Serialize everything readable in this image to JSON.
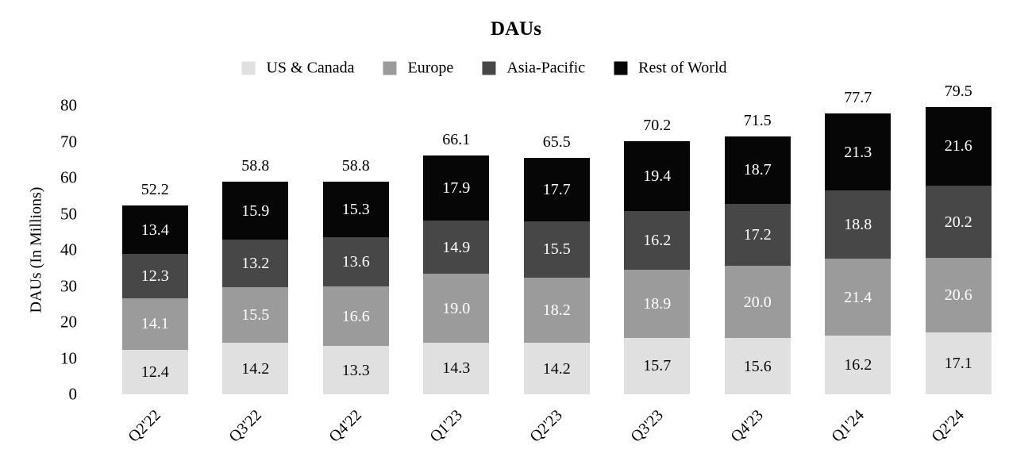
{
  "chart_data": {
    "type": "bar",
    "stacked": true,
    "title": "DAUs",
    "ylabel": "DAUs (In Millions)",
    "ylim": [
      0,
      80
    ],
    "yticks": [
      0,
      10,
      20,
      30,
      40,
      50,
      60,
      70,
      80
    ],
    "grid": false,
    "legend_position": "top-center",
    "categories": [
      "Q2'22",
      "Q3'22",
      "Q4'22",
      "Q1'23",
      "Q2'23",
      "Q3'23",
      "Q4'23",
      "Q1'24",
      "Q2'24"
    ],
    "series": [
      {
        "name": "US & Canada",
        "color": "#e0e0e0",
        "label_color": "#0a0a0a",
        "values": [
          12.4,
          14.2,
          13.3,
          14.3,
          14.2,
          15.7,
          15.6,
          16.2,
          17.1
        ]
      },
      {
        "name": "Europe",
        "color": "#9b9b9b",
        "label_color": "#ffffff",
        "values": [
          14.1,
          15.5,
          16.6,
          19.0,
          18.2,
          18.9,
          20.0,
          21.4,
          20.6
        ]
      },
      {
        "name": "Asia-Pacific",
        "color": "#474747",
        "label_color": "#ffffff",
        "values": [
          12.3,
          13.2,
          13.6,
          14.9,
          15.5,
          16.2,
          17.2,
          18.8,
          20.2
        ]
      },
      {
        "name": "Rest of World",
        "color": "#060606",
        "label_color": "#ffffff",
        "values": [
          13.4,
          15.9,
          15.3,
          17.9,
          17.7,
          19.4,
          18.7,
          21.3,
          21.6
        ]
      }
    ],
    "totals": [
      52.2,
      58.8,
      58.8,
      66.1,
      65.5,
      70.2,
      71.5,
      77.7,
      79.5
    ]
  }
}
